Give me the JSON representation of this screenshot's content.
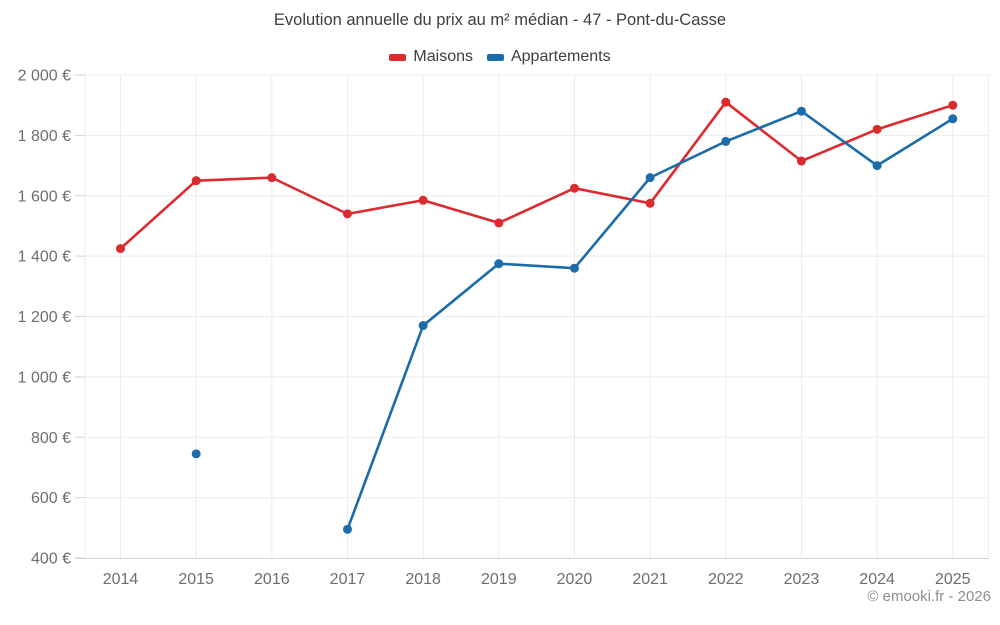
{
  "title": "Evolution annuelle du prix au m² médian - 47 - Pont-du-Casse",
  "watermark": "© emooki.fr - 2026",
  "colors": {
    "maisons": "#dc2b30",
    "appartements": "#1b6ca8",
    "grid": "#ececec",
    "axis": "#d4d4d4",
    "tick_label": "#6e6e6e",
    "title_text": "#3e3e3e",
    "watermark_text": "#8d8d8d",
    "background": "#ffffff"
  },
  "chart_data": {
    "type": "line",
    "title": "Evolution annuelle du prix au m² médian - 47 - Pont-du-Casse",
    "categories": [
      "2014",
      "2015",
      "2016",
      "2017",
      "2018",
      "2019",
      "2020",
      "2021",
      "2022",
      "2023",
      "2024",
      "2025"
    ],
    "series": [
      {
        "name": "Maisons",
        "color": "#dc2b30",
        "values": [
          1425,
          1650,
          1660,
          1540,
          1585,
          1510,
          1625,
          1575,
          1910,
          1715,
          1820,
          1900
        ]
      },
      {
        "name": "Appartements",
        "color": "#1b6ca8",
        "values": [
          null,
          745,
          null,
          495,
          1170,
          1375,
          1360,
          1660,
          1780,
          1880,
          1700,
          1855
        ]
      }
    ],
    "xlabel": "",
    "ylabel": "",
    "ylim": [
      400,
      2000
    ],
    "ytick_step": 200,
    "ytick_labels": [
      "400 €",
      "600 €",
      "800 €",
      "1 000 €",
      "1 200 €",
      "1 400 €",
      "1 600 €",
      "1 800 €",
      "2 000 €"
    ],
    "grid": true,
    "legend_position": "top",
    "marker": "circle"
  }
}
